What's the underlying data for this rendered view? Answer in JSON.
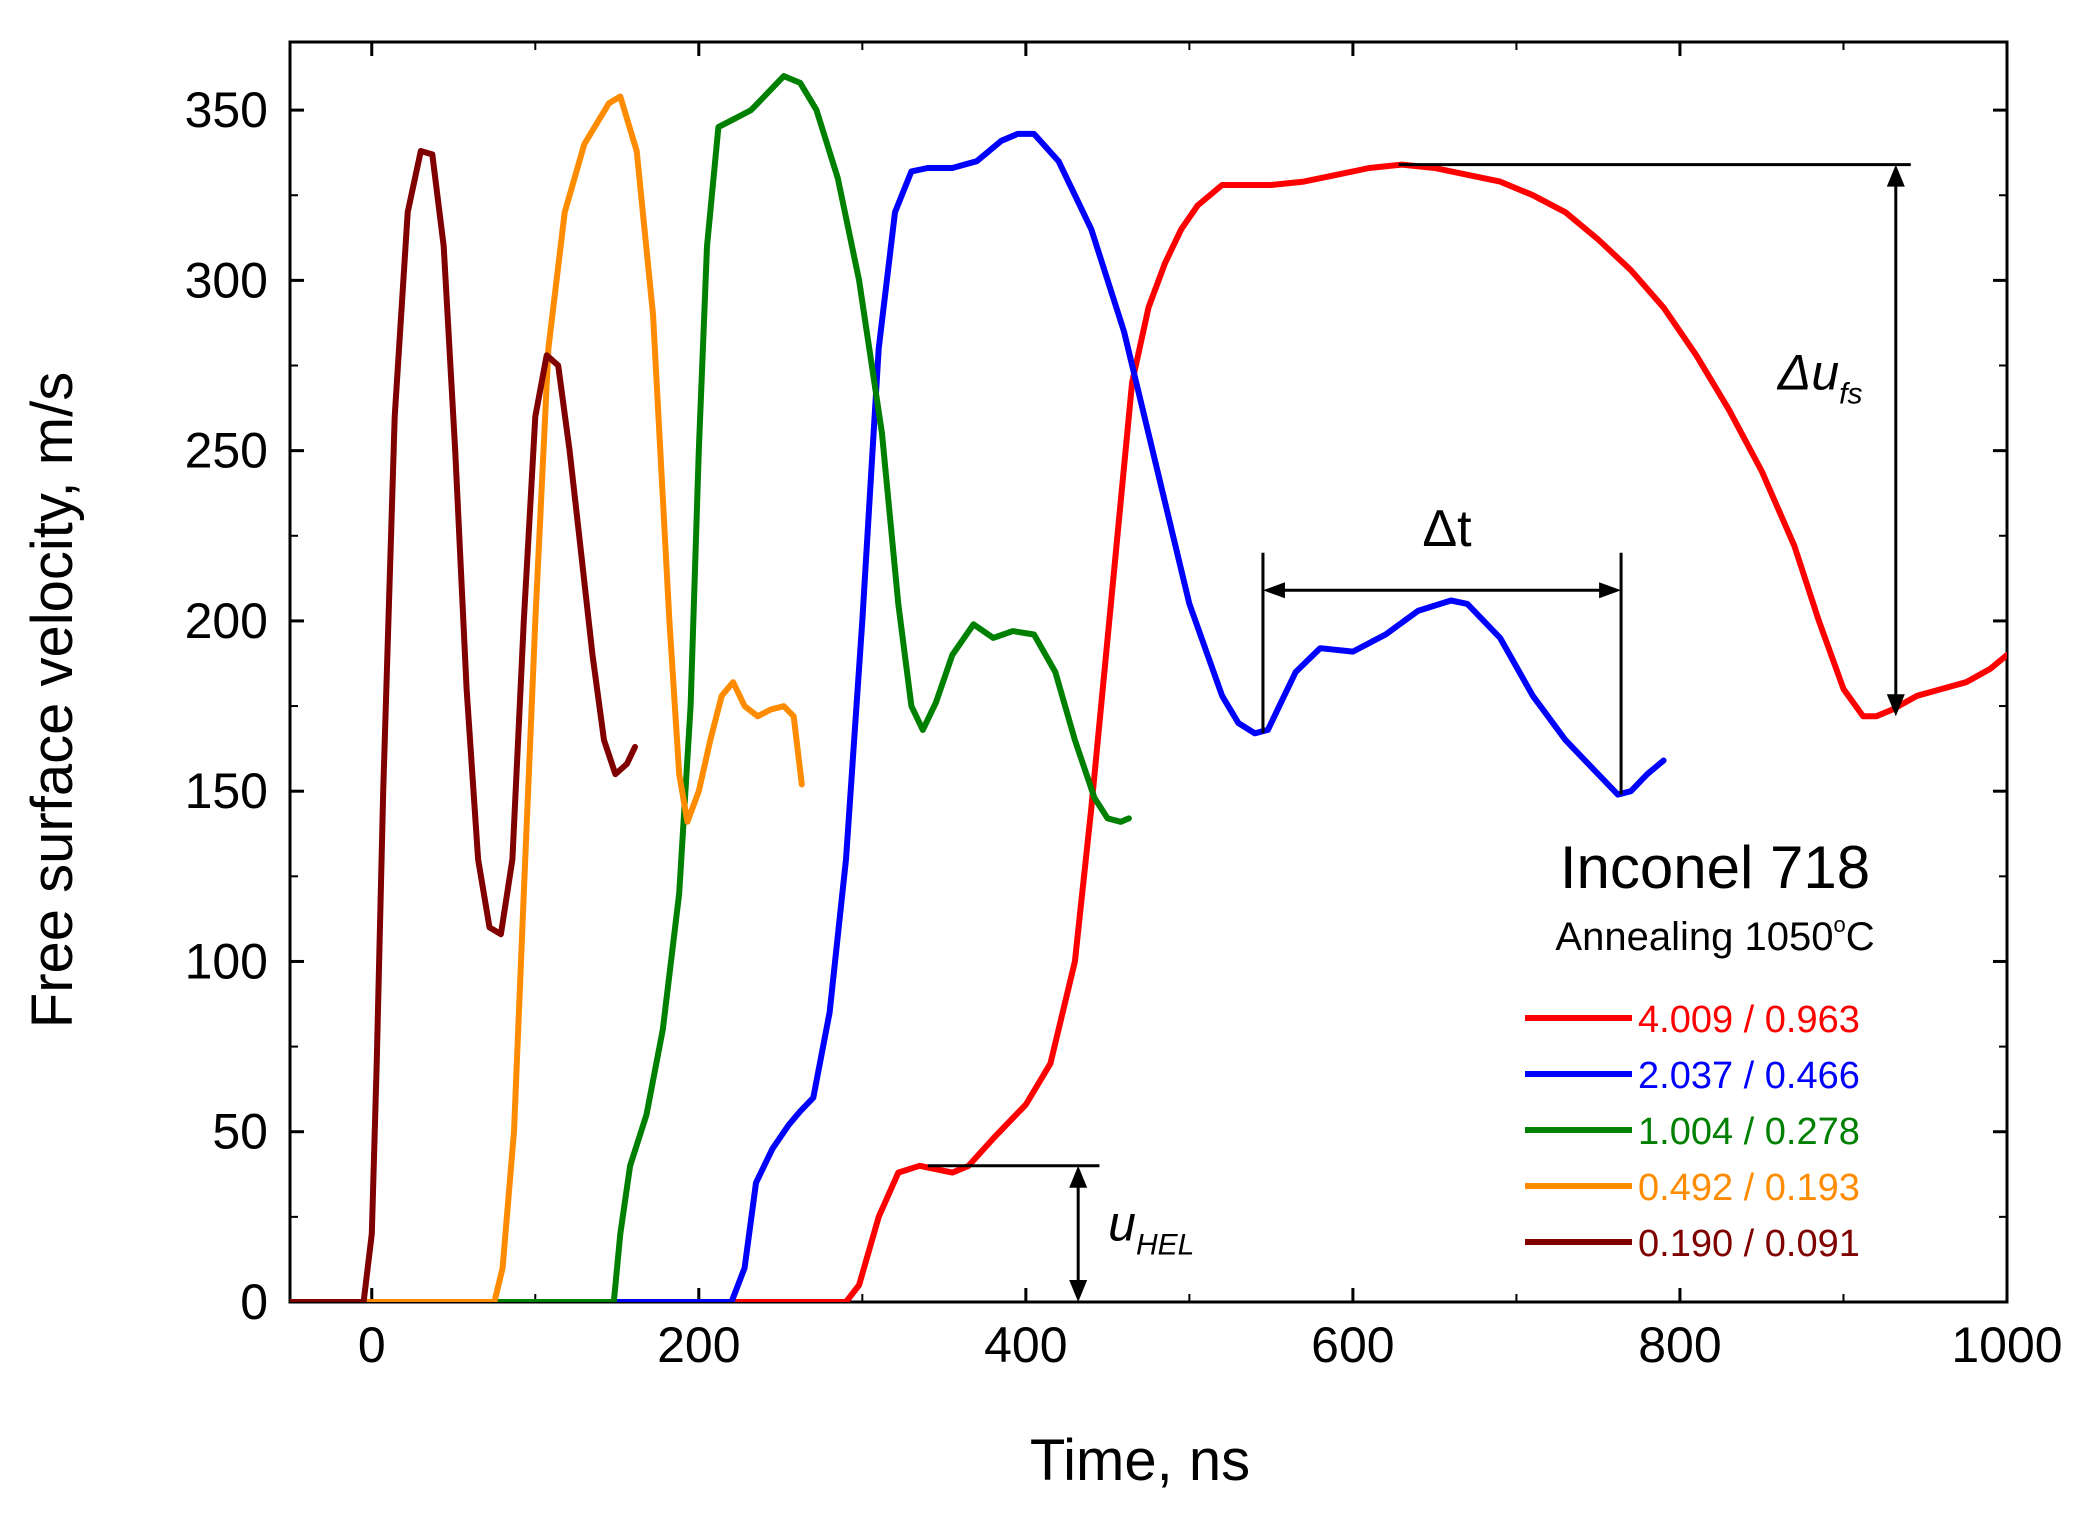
{
  "chart_data": {
    "type": "line",
    "title": "",
    "xlabel": "Time, ns",
    "ylabel": "Free surface velocity, m/s",
    "xlim": [
      -50,
      1000
    ],
    "ylim": [
      0,
      370
    ],
    "xticks": [
      0,
      200,
      400,
      600,
      800,
      1000
    ],
    "yticks": [
      0,
      50,
      100,
      150,
      200,
      250,
      300,
      350
    ],
    "xtick_labels": [
      "0",
      "200",
      "400",
      "600",
      "800",
      "1000"
    ],
    "ytick_labels": [
      "0",
      "50",
      "100",
      "150",
      "200",
      "250",
      "300",
      "350"
    ],
    "legend_title": "Inconel 718",
    "legend_subtitle_prefix": "Annealing 1050",
    "legend_subtitle_degree": "o",
    "legend_subtitle_unit": "C",
    "series": [
      {
        "name": "4.009 / 0.963",
        "color": "#ff0000",
        "x": [
          -50,
          290,
          298,
          310,
          322,
          335,
          345,
          355,
          365,
          380,
          400,
          415,
          430,
          440,
          455,
          465,
          475,
          485,
          495,
          505,
          520,
          535,
          550,
          570,
          590,
          610,
          630,
          650,
          670,
          690,
          710,
          730,
          750,
          770,
          790,
          810,
          830,
          850,
          870,
          885,
          900,
          912,
          920,
          930,
          945,
          960,
          975,
          990,
          1000
        ],
        "y": [
          0,
          0,
          5,
          25,
          38,
          40,
          39,
          38,
          40,
          48,
          58,
          70,
          100,
          145,
          220,
          270,
          292,
          305,
          315,
          322,
          328,
          328,
          328,
          329,
          331,
          333,
          334,
          333,
          331,
          329,
          325,
          320,
          312,
          303,
          292,
          278,
          262,
          244,
          222,
          200,
          180,
          172,
          172,
          174,
          178,
          180,
          182,
          186,
          190
        ]
      },
      {
        "name": "2.037 / 0.466",
        "color": "#0000ff",
        "x": [
          -50,
          220,
          228,
          235,
          245,
          255,
          262,
          270,
          280,
          290,
          300,
          310,
          320,
          330,
          340,
          355,
          370,
          385,
          395,
          405,
          420,
          440,
          460,
          480,
          500,
          520,
          530,
          540,
          548,
          555,
          565,
          580,
          600,
          620,
          640,
          660,
          670,
          690,
          710,
          730,
          750,
          762,
          770,
          780,
          790
        ],
        "y": [
          0,
          0,
          10,
          35,
          45,
          52,
          56,
          60,
          85,
          130,
          200,
          280,
          320,
          332,
          333,
          333,
          335,
          341,
          343,
          343,
          335,
          315,
          285,
          245,
          205,
          178,
          170,
          167,
          168,
          175,
          185,
          192,
          191,
          196,
          203,
          206,
          205,
          195,
          178,
          165,
          155,
          149,
          150,
          155,
          159
        ]
      },
      {
        "name": "1.004 / 0.278",
        "color": "#008000",
        "x": [
          -50,
          148,
          152,
          158,
          168,
          178,
          188,
          195,
          200,
          205,
          212,
          220,
          232,
          242,
          252,
          262,
          272,
          285,
          298,
          312,
          322,
          330,
          337,
          345,
          355,
          368,
          380,
          392,
          405,
          418,
          430,
          442,
          450,
          458,
          463
        ],
        "y": [
          0,
          0,
          20,
          40,
          55,
          80,
          120,
          175,
          250,
          310,
          345,
          347,
          350,
          355,
          360,
          358,
          350,
          330,
          300,
          255,
          205,
          175,
          168,
          176,
          190,
          199,
          195,
          197,
          196,
          185,
          165,
          148,
          142,
          141,
          142
        ]
      },
      {
        "name": "0.492 / 0.193",
        "color": "#ff8c00",
        "x": [
          -50,
          75,
          80,
          87,
          93,
          100,
          108,
          118,
          130,
          145,
          152,
          162,
          172,
          182,
          188,
          193,
          200,
          207,
          214,
          221,
          228,
          236,
          244,
          252,
          258,
          263
        ],
        "y": [
          0,
          0,
          10,
          50,
          120,
          200,
          280,
          320,
          340,
          352,
          354,
          338,
          290,
          200,
          155,
          141,
          150,
          165,
          178,
          182,
          175,
          172,
          174,
          175,
          172,
          152
        ]
      },
      {
        "name": "0.190 / 0.091",
        "color": "#800000",
        "x": [
          -50,
          -5,
          0,
          3,
          7,
          14,
          22,
          30,
          37,
          44,
          51,
          58,
          65,
          72,
          79,
          86,
          93,
          100,
          107,
          114,
          121,
          128,
          135,
          142,
          149,
          156,
          161
        ],
        "y": [
          0,
          0,
          20,
          70,
          150,
          260,
          320,
          338,
          337,
          310,
          250,
          180,
          130,
          110,
          108,
          130,
          200,
          260,
          278,
          275,
          250,
          220,
          190,
          165,
          155,
          158,
          163
        ]
      }
    ],
    "annotations": {
      "delta_u_symbol": "Δu",
      "delta_u_sub": "fs",
      "delta_t_symbol": "Δt",
      "u_hel_symbol": "u",
      "u_hel_sub": "HEL"
    }
  }
}
